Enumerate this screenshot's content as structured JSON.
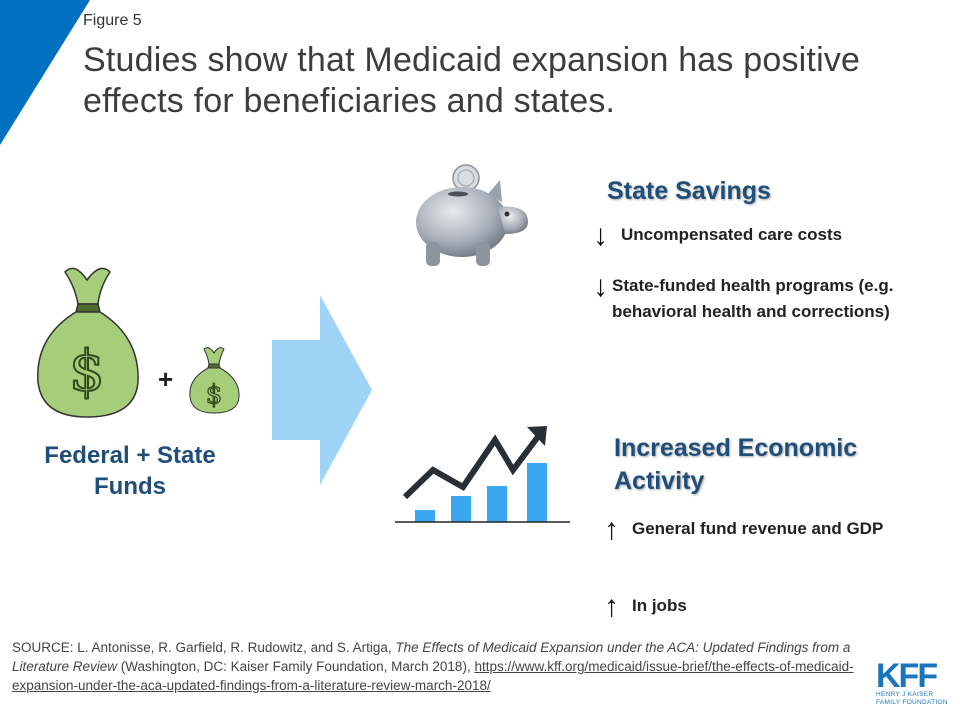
{
  "figure_label": "Figure 5",
  "title": "Studies show that Medicaid expansion has positive effects for beneficiaries and states.",
  "funds": {
    "plus": "+",
    "label": "Federal + State Funds"
  },
  "state_savings": {
    "heading": "State Savings",
    "items": [
      {
        "icon": "down-arrow-icon",
        "symbol": "↓",
        "text": "Uncompensated care costs"
      },
      {
        "icon": "down-arrow-icon",
        "symbol": "↓",
        "text": "State-funded health  programs (e.g. behavioral health and corrections)"
      }
    ]
  },
  "economic_activity": {
    "heading": "Increased Economic Activity",
    "items": [
      {
        "icon": "up-arrow-icon",
        "symbol": "↑",
        "text": "General fund revenue and GDP"
      },
      {
        "icon": "up-arrow-icon",
        "symbol": "↑",
        "text": "In jobs"
      }
    ]
  },
  "source": {
    "prefix": "SOURCE:  L. Antonisse, R. Garfield, R. Rudowitz, and S. Artiga, ",
    "italic": "The Effects of Medicaid Expansion under the ACA: Updated Findings from a Literature Review",
    "suffix": " (Washington, DC: Kaiser Family Foundation, March 2018), ",
    "link": "https://www.kff.org/medicaid/issue-brief/the-effects-of-medicaid-expansion-under-the-aca-updated-findings-from-a-literature-review-march-2018/"
  },
  "logo": {
    "main": "KFF",
    "line1": "HENRY J KAISER",
    "line2": "FAMILY FOUNDATION"
  },
  "colors": {
    "accent_blue": "#0070c0",
    "heading_blue": "#1f4e79",
    "arrow_light_blue": "#9fd4f7",
    "bar_blue": "#3aa8f0",
    "bag_green": "#a6ce7a",
    "kff_blue": "#1b75bc"
  }
}
